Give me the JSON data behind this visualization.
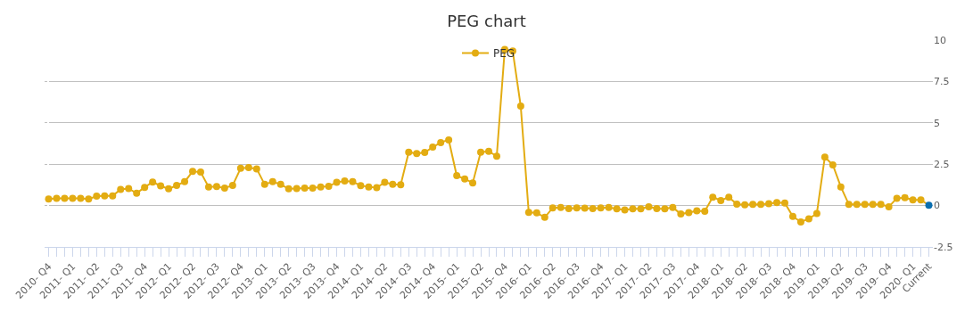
{
  "chart_data": {
    "type": "line",
    "title": "PEG chart",
    "categories": [
      "2010- Q4",
      null,
      null,
      "2011- Q1",
      null,
      null,
      "2011- Q2",
      null,
      null,
      "2011- Q3",
      null,
      null,
      "2011- Q4",
      null,
      null,
      "2012- Q1",
      null,
      null,
      "2012- Q2",
      null,
      null,
      "2012- Q3",
      null,
      null,
      "2012- Q4",
      null,
      null,
      "2013- Q1",
      null,
      null,
      "2013- Q2",
      null,
      null,
      "2013- Q3",
      null,
      null,
      "2013- Q4",
      null,
      null,
      "2014- Q1",
      null,
      null,
      "2014- Q2",
      null,
      null,
      "2014- Q3",
      null,
      null,
      "2014- Q4",
      null,
      null,
      "2015- Q1",
      null,
      null,
      "2015- Q2",
      null,
      null,
      "2015- Q4",
      null,
      null,
      "2016- Q1",
      null,
      null,
      "2016- Q2",
      null,
      null,
      "2016- Q3",
      null,
      null,
      "2016- Q4",
      null,
      null,
      "2017- Q1",
      null,
      null,
      "2017- Q2",
      null,
      null,
      "2017- Q3",
      null,
      null,
      "2017- Q4",
      null,
      null,
      "2018- Q1",
      null,
      null,
      "2018- Q2",
      null,
      null,
      "2018- Q3",
      null,
      null,
      "2018- Q4",
      null,
      null,
      "2019- Q1",
      null,
      null,
      "2019- Q2",
      null,
      null,
      "2019- Q3",
      null,
      null,
      "2019- Q4",
      null,
      null,
      "2020- Q1",
      null,
      "Current"
    ],
    "series": [
      {
        "name": "PEG",
        "color": "#e3ac12",
        "values": [
          0.39,
          0.43,
          0.43,
          0.43,
          0.43,
          0.39,
          0.57,
          0.59,
          0.59,
          0.98,
          1.03,
          0.74,
          1.1,
          1.42,
          1.19,
          1.01,
          1.22,
          1.44,
          2.06,
          2.02,
          1.13,
          1.15,
          1.06,
          1.22,
          2.25,
          2.3,
          2.22,
          1.28,
          1.45,
          1.28,
          1.01,
          1.03,
          1.06,
          1.06,
          1.13,
          1.17,
          1.4,
          1.49,
          1.44,
          1.21,
          1.13,
          1.08,
          1.4,
          1.28,
          1.26,
          3.23,
          3.14,
          3.21,
          3.53,
          3.81,
          3.97,
          1.81,
          1.61,
          1.37,
          3.23,
          3.28,
          2.98,
          9.43,
          9.34,
          6.01,
          -0.41,
          -0.44,
          -0.71,
          -0.14,
          -0.12,
          -0.18,
          -0.14,
          -0.16,
          -0.18,
          -0.14,
          -0.12,
          -0.2,
          -0.27,
          -0.2,
          -0.2,
          -0.07,
          -0.18,
          -0.2,
          -0.11,
          -0.51,
          -0.43,
          -0.32,
          -0.34,
          0.51,
          0.3,
          0.51,
          0.09,
          0.05,
          0.07,
          0.07,
          0.11,
          0.18,
          0.16,
          -0.66,
          -0.99,
          -0.8,
          -0.48,
          2.93,
          2.46,
          1.13,
          0.07,
          0.07,
          0.07,
          0.07,
          0.07,
          -0.07,
          0.44,
          0.48,
          0.34,
          0.34,
          0.02
        ],
        "colors": [
          "#e3ac12",
          "#e3ac12",
          "#e3ac12",
          "#e3ac12",
          "#e3ac12",
          "#e3ac12",
          "#e3ac12",
          "#e3ac12",
          "#e3ac12",
          "#e3ac12",
          "#e3ac12",
          "#e3ac12",
          "#e3ac12",
          "#e3ac12",
          "#e3ac12",
          "#e3ac12",
          "#e3ac12",
          "#e3ac12",
          "#e3ac12",
          "#e3ac12",
          "#e3ac12",
          "#e3ac12",
          "#e3ac12",
          "#e3ac12",
          "#e3ac12",
          "#e3ac12",
          "#e3ac12",
          "#e3ac12",
          "#e3ac12",
          "#e3ac12",
          "#e3ac12",
          "#e3ac12",
          "#e3ac12",
          "#e3ac12",
          "#e3ac12",
          "#e3ac12",
          "#e3ac12",
          "#e3ac12",
          "#e3ac12",
          "#e3ac12",
          "#e3ac12",
          "#e3ac12",
          "#e3ac12",
          "#e3ac12",
          "#e3ac12",
          "#e3ac12",
          "#e3ac12",
          "#e3ac12",
          "#e3ac12",
          "#e3ac12",
          "#e3ac12",
          "#e3ac12",
          "#e3ac12",
          "#e3ac12",
          "#e3ac12",
          "#e3ac12",
          "#e3ac12",
          "#e3ac12",
          "#e3ac12",
          "#e3ac12",
          "#e3ac12",
          "#e3ac12",
          "#e3ac12",
          "#e3ac12",
          "#e3ac12",
          "#e3ac12",
          "#e3ac12",
          "#e3ac12",
          "#e3ac12",
          "#e3ac12",
          "#e3ac12",
          "#e3ac12",
          "#e3ac12",
          "#e3ac12",
          "#e3ac12",
          "#e3ac12",
          "#e3ac12",
          "#e3ac12",
          "#e3ac12",
          "#e3ac12",
          "#e3ac12",
          "#e3ac12",
          "#e3ac12",
          "#e3ac12",
          "#e3ac12",
          "#e3ac12",
          "#e3ac12",
          "#e3ac12",
          "#e3ac12",
          "#e3ac12",
          "#e3ac12",
          "#e3ac12",
          "#e3ac12",
          "#e3ac12",
          "#e3ac12",
          "#e3ac12",
          "#e3ac12",
          "#e3ac12",
          "#e3ac12",
          "#e3ac12",
          "#e3ac12",
          "#e3ac12",
          "#e3ac12",
          "#e3ac12",
          "#e3ac12",
          "#e3ac12",
          "#e3ac12",
          "#e3ac12",
          "#e3ac12",
          "#e3ac12",
          "#0a6fb0"
        ]
      }
    ],
    "ylim": [
      -2.5,
      10
    ],
    "yticks": [
      -2.5,
      0,
      2.5,
      5,
      7.5,
      10
    ],
    "grid": "y",
    "legend": "top",
    "marker": "circle",
    "line_style": "solid"
  }
}
